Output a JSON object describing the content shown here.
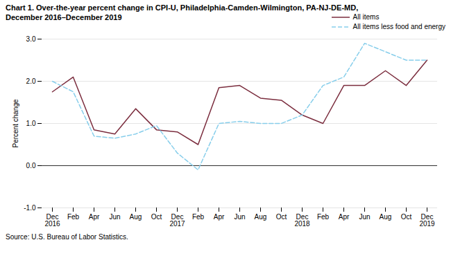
{
  "chart_data": {
    "type": "line",
    "title": "Chart 1. Over-the-year percent change in CPI-U, Philadelphia-Camden-Wilmington, PA-NJ-DE-MD,",
    "subtitle": "December 2016–December 2019",
    "caption": "Source: U.S. Bureau of Labor Statistics.",
    "y_label": "Percent change",
    "categories": [
      "Dec\n2016",
      "Feb",
      "Apr",
      "Jun",
      "Aug",
      "Oct",
      "Dec\n2017",
      "Feb",
      "Apr",
      "Jun",
      "Aug",
      "Oct",
      "Dec\n2018",
      "Feb",
      "Apr",
      "Jun",
      "Aug",
      "Oct",
      "Dec\n2019"
    ],
    "series": [
      {
        "name": "All items",
        "color": "#7B2D3E",
        "line_style": "solid",
        "values": [
          1.75,
          2.1,
          0.85,
          0.75,
          1.35,
          0.85,
          0.8,
          0.5,
          1.85,
          1.9,
          1.6,
          1.55,
          1.2,
          1.0,
          1.9,
          1.9,
          2.25,
          1.9,
          2.5
        ]
      },
      {
        "name": "All items less food and energy",
        "color": "#87CEEB",
        "line_style": "dashed",
        "values": [
          2.0,
          1.75,
          0.7,
          0.65,
          0.75,
          0.95,
          0.3,
          -0.1,
          1.0,
          1.05,
          1.0,
          1.0,
          1.2,
          1.9,
          2.1,
          2.9,
          2.7,
          2.5,
          2.5
        ]
      }
    ],
    "ylim": [
      -1.0,
      3.0
    ],
    "yticks": [
      {
        "value": -1.0,
        "label": "-1.0"
      },
      {
        "value": 0.0,
        "label": "0.0"
      },
      {
        "value": 1.0,
        "label": "1.0"
      },
      {
        "value": 2.0,
        "label": "2.0"
      },
      {
        "value": 3.0,
        "label": "3.0"
      }
    ],
    "grid": true,
    "legend": "upper right"
  }
}
